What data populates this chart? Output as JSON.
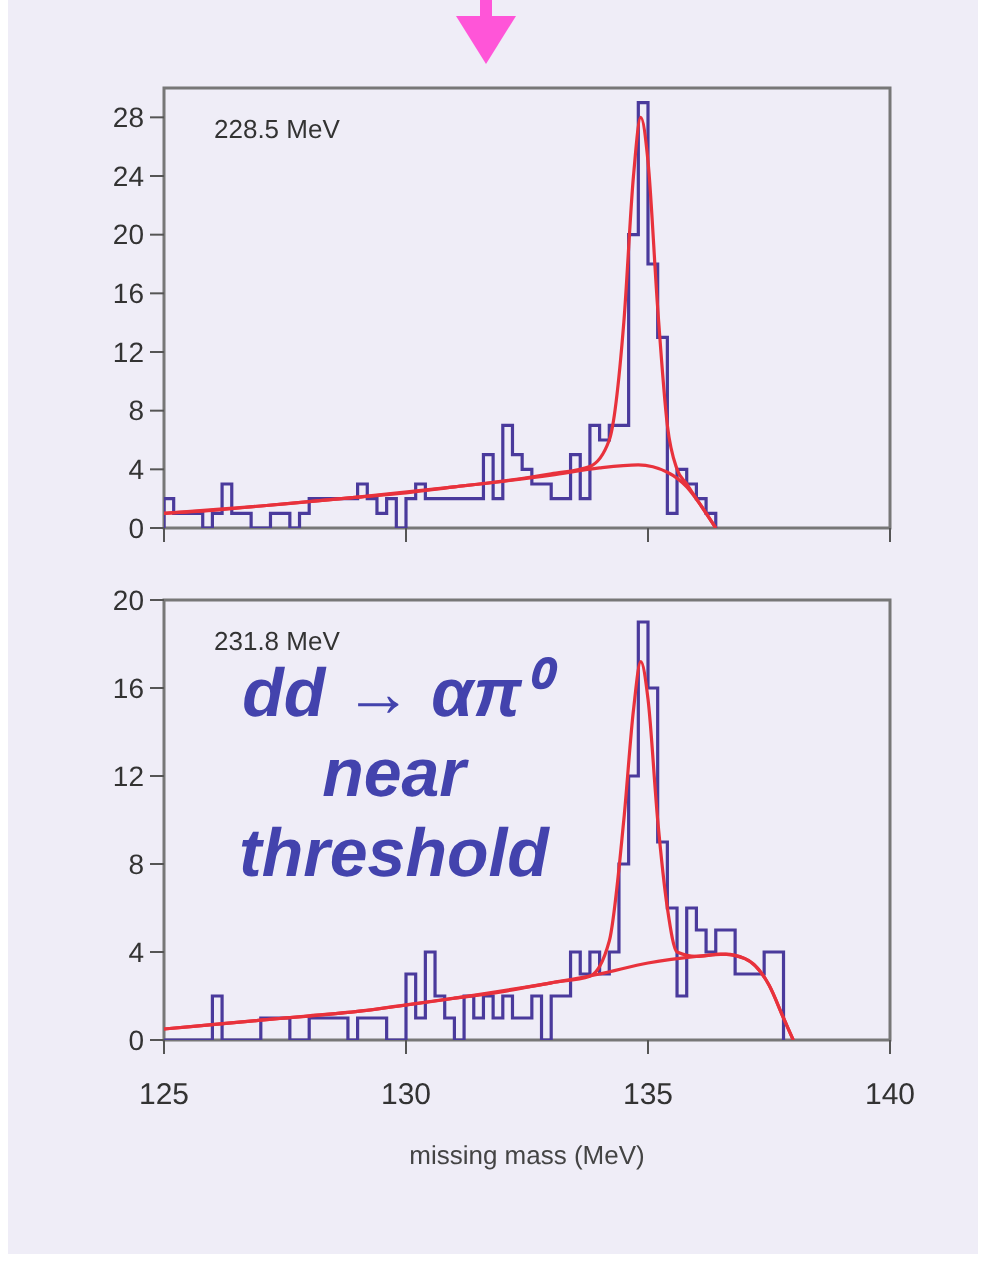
{
  "chart_data": [
    {
      "type": "histogram",
      "xlim": [
        125,
        140
      ],
      "xticks": [
        125,
        130,
        135,
        140
      ],
      "ylim": [
        0,
        30
      ],
      "yticks": [
        0,
        4,
        8,
        12,
        16,
        20,
        24,
        28
      ],
      "tick_labels": "y",
      "annotations": [
        "228.5 MeV"
      ],
      "series": [
        {
          "color": "#4a3a9c",
          "bins": [
            125,
            125.2,
            125.4,
            125.6,
            125.8,
            126,
            126.2,
            126.4,
            126.6,
            126.8,
            127,
            127.2,
            127.4,
            127.6,
            127.8,
            128,
            128.2,
            128.4,
            128.6,
            128.8,
            129,
            129.2,
            129.4,
            129.6,
            129.8,
            130,
            130.2,
            130.4,
            130.6,
            130.8,
            131,
            131.2,
            131.4,
            131.6,
            131.8,
            132,
            132.2,
            132.4,
            132.6,
            132.8,
            133,
            133.2,
            133.4,
            133.6,
            133.8,
            134,
            134.2,
            134.4,
            134.6,
            134.8,
            135,
            135.2,
            135.4,
            135.6,
            135.8,
            136,
            136.2,
            136.4
          ],
          "values": [
            2,
            1,
            1,
            1,
            0,
            1,
            3,
            1,
            1,
            0,
            0,
            1,
            1,
            0,
            1,
            2,
            2,
            2,
            2,
            2,
            3,
            2,
            1,
            2,
            0,
            2,
            3,
            2,
            2,
            2,
            2,
            2,
            2,
            5,
            2,
            7,
            5,
            4,
            3,
            3,
            2,
            2,
            5,
            2,
            7,
            6,
            7,
            7,
            20,
            29,
            18,
            13,
            1,
            4,
            3,
            2,
            1
          ]
        },
        {
          "type": "line",
          "color": "#e8323c",
          "x": [
            125,
            126,
            127,
            128,
            129,
            130,
            131,
            132,
            133,
            133.8,
            134.2,
            134.5,
            134.7,
            134.85,
            135,
            135.2,
            135.4,
            135.6,
            135.8,
            136,
            136.2,
            136.4
          ],
          "values": [
            1,
            1.2,
            1.5,
            1.8,
            2.1,
            2.4,
            2.8,
            3.2,
            3.7,
            4.2,
            6,
            14,
            24,
            28,
            25,
            15,
            7,
            4,
            3,
            2,
            1,
            0
          ]
        },
        {
          "type": "line",
          "color": "#e8323c",
          "x": [
            125,
            127,
            129,
            131,
            133,
            134,
            134.8,
            135.4,
            135.8,
            136.1,
            136.4
          ],
          "values": [
            1,
            1.5,
            2.1,
            2.8,
            3.6,
            4.1,
            4.3,
            3.8,
            2.8,
            1.5,
            0
          ]
        }
      ]
    },
    {
      "type": "histogram",
      "xlim": [
        125,
        140
      ],
      "xticks": [
        125,
        130,
        135,
        140
      ],
      "ylim": [
        0,
        20
      ],
      "yticks": [
        0,
        4,
        8,
        12,
        16,
        20
      ],
      "xlabel": "missing mass (MeV)",
      "annotations": [
        "231.8 MeV",
        "dd → απ⁰\nnear\nthreshold"
      ],
      "series": [
        {
          "color": "#4a3a9c",
          "bins": [
            125,
            125.2,
            125.4,
            125.6,
            125.8,
            126,
            126.2,
            126.4,
            126.6,
            126.8,
            127,
            127.2,
            127.4,
            127.6,
            127.8,
            128,
            128.2,
            128.4,
            128.6,
            128.8,
            129,
            129.2,
            129.4,
            129.6,
            129.8,
            130,
            130.2,
            130.4,
            130.6,
            130.8,
            131,
            131.2,
            131.4,
            131.6,
            131.8,
            132,
            132.2,
            132.4,
            132.6,
            132.8,
            133,
            133.2,
            133.4,
            133.6,
            133.8,
            134,
            134.2,
            134.4,
            134.6,
            134.8,
            135,
            135.2,
            135.4,
            135.6,
            135.8,
            136,
            136.2,
            136.4,
            136.6,
            136.8,
            137,
            137.2,
            137.4,
            137.6,
            137.8
          ],
          "values": [
            0,
            0,
            0,
            0,
            0,
            2,
            0,
            0,
            0,
            0,
            1,
            1,
            1,
            0,
            0,
            1,
            1,
            1,
            1,
            0,
            1,
            1,
            1,
            0,
            0,
            3,
            1,
            4,
            2,
            1,
            0,
            2,
            1,
            2,
            1,
            2,
            1,
            1,
            2,
            0,
            2,
            2,
            4,
            3,
            4,
            3,
            4,
            8,
            12,
            19,
            16,
            9,
            6,
            2,
            6,
            5,
            4,
            5,
            5,
            3,
            3,
            3,
            4,
            4
          ]
        },
        {
          "type": "line",
          "color": "#e8323c",
          "x": [
            125,
            126,
            127,
            128,
            129,
            130,
            131,
            132,
            133,
            133.8,
            134.2,
            134.5,
            134.7,
            134.85,
            135,
            135.2,
            135.4,
            135.6,
            136,
            136.5,
            137,
            137.5,
            137.8,
            138
          ],
          "values": [
            0.5,
            0.7,
            0.9,
            1.1,
            1.3,
            1.6,
            1.9,
            2.2,
            2.6,
            2.9,
            4.5,
            10,
            15,
            17.2,
            15.5,
            10,
            6,
            4,
            3.8,
            3.9,
            3.7,
            2.5,
            1,
            0
          ]
        },
        {
          "type": "line",
          "color": "#e8323c",
          "x": [
            125,
            127,
            129,
            131,
            133,
            134,
            135,
            136,
            136.6,
            137,
            137.5,
            137.8,
            138
          ],
          "values": [
            0.5,
            0.9,
            1.3,
            1.9,
            2.6,
            3,
            3.5,
            3.8,
            3.9,
            3.7,
            2.5,
            1,
            0
          ]
        }
      ]
    }
  ]
}
